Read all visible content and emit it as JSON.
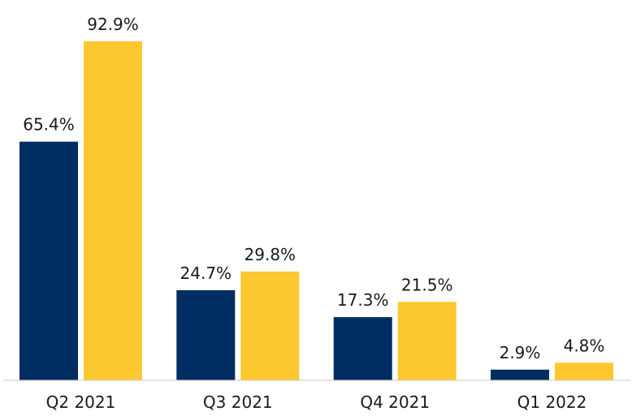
{
  "chart_data": {
    "type": "bar",
    "title": "",
    "xlabel": "",
    "ylabel": "",
    "categories": [
      "Q2 2021",
      "Q3 2021",
      "Q4 2021",
      "Q1 2022"
    ],
    "series": [
      {
        "values": [
          65.4,
          24.7,
          17.3,
          2.9
        ],
        "labels": [
          "65.4%",
          "24.7%",
          "17.3%",
          "2.9%"
        ],
        "color": "#002d62"
      },
      {
        "values": [
          92.9,
          29.8,
          21.5,
          4.8
        ],
        "labels": [
          "92.9%",
          "29.8%",
          "21.5%",
          "4.8%"
        ],
        "color": "#fdc82f"
      }
    ],
    "ylim": [
      0,
      100
    ],
    "grid": false,
    "legend": "none",
    "axis_color": "#c8c8c8"
  }
}
